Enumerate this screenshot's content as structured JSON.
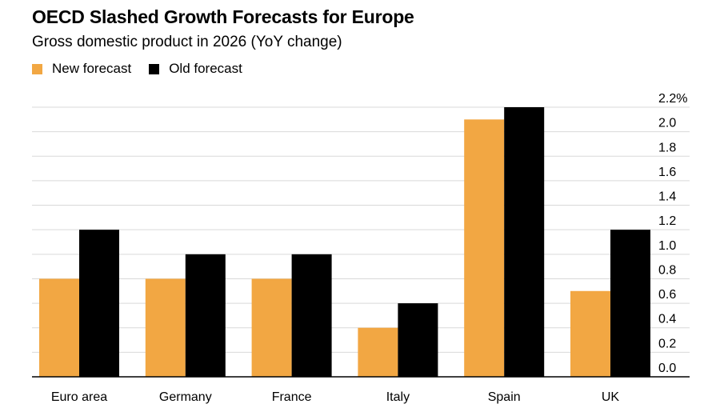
{
  "chart_data": {
    "type": "bar",
    "title": "OECD Slashed Growth Forecasts for Europe",
    "subtitle": "Gross domestic product in 2026 (YoY change)",
    "categories": [
      "Euro area",
      "Germany",
      "France",
      "Italy",
      "Spain",
      "UK"
    ],
    "series": [
      {
        "name": "New forecast",
        "color": "#f2a743",
        "values": [
          0.8,
          0.8,
          0.8,
          0.4,
          2.1,
          0.7
        ]
      },
      {
        "name": "Old forecast",
        "color": "#000000",
        "values": [
          1.2,
          1.0,
          1.0,
          0.6,
          2.2,
          1.2
        ]
      }
    ],
    "ylim": [
      0,
      2.2
    ],
    "yticks": [
      0.0,
      0.2,
      0.4,
      0.6,
      0.8,
      1.0,
      1.2,
      1.4,
      1.6,
      1.8,
      2.0,
      2.2
    ],
    "ytick_labels": [
      "0.0",
      "0.2",
      "0.4",
      "0.6",
      "0.8",
      "1.0",
      "1.2",
      "1.4",
      "1.6",
      "1.8",
      "2.0",
      "2.2%"
    ],
    "xlabel": "",
    "ylabel": "",
    "grid": true,
    "legend_position": "top-left",
    "y_axis_side": "right"
  }
}
